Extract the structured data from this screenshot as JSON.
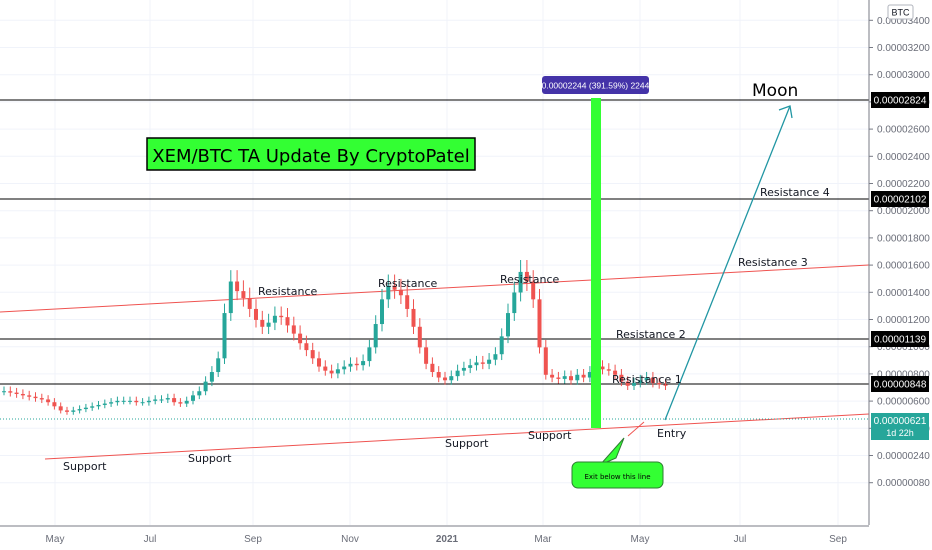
{
  "title_box": {
    "text": "XEM/BTC TA Update By CryptoPatel",
    "bg_color": "#33ff33",
    "border_color": "#000000"
  },
  "currency_badge": "BTC",
  "colors": {
    "up": "#26a69a",
    "down": "#ef5350",
    "channel": "#ef5350",
    "green_bar": "#33ff33",
    "arrow": "#2196a3",
    "level_line": "#000000",
    "measure_badge": "#4433a8",
    "price_badge": "#26a69a",
    "exit_box": "#33ff33"
  },
  "chart_data": {
    "type": "candlestick",
    "pair": "XEM/BTC",
    "price_scale": {
      "ticks": [
        "0.00003400",
        "0.00003200",
        "0.00003000",
        "0.00002800",
        "0.00002600",
        "0.00002400",
        "0.00002200",
        "0.00002000",
        "0.00001800",
        "0.00001600",
        "0.00001400",
        "0.00001200",
        "0.00001000",
        "0.00000800",
        "0.00000600",
        "0.00000400",
        "0.00000240",
        "0.00000080"
      ],
      "range": [
        3e-07,
        3.6e-06
      ]
    },
    "time_axis": {
      "labels": [
        "May",
        "Jul",
        "Sep",
        "Nov",
        "2021",
        "Mar",
        "May",
        "Jul",
        "Sep"
      ],
      "bold_label": "2021"
    },
    "horizontal_levels": [
      {
        "price": 2.824e-05,
        "label": "0.00002824"
      },
      {
        "price": 2.102e-05,
        "label": "0.00002102"
      },
      {
        "price": 1.139e-05,
        "label": "0.00001139"
      },
      {
        "price": 8.48e-06,
        "label": "0.00000848"
      }
    ],
    "current_price": {
      "label": "0.00000621",
      "countdown": "1d 22h"
    },
    "measure": {
      "label": "0.00002244 (391.59%) 2244"
    },
    "annotations": {
      "support": [
        "Support",
        "Support",
        "Support",
        "Support"
      ],
      "resistance": [
        "Resistance",
        "Resistance",
        "Resistance"
      ],
      "resistance_levels": [
        "Resistance 1",
        "Resistance 2",
        "Resistance 3",
        "Resistance 4"
      ],
      "entry": "Entry",
      "moon": "Moon",
      "exit": "Exit below this line"
    },
    "series": [
      {
        "name": "",
        "close": [
          5.8e-06,
          5.7e-06,
          5.6e-06,
          5.5e-06,
          5.4e-06,
          5.3e-06,
          5.2e-06,
          5e-06,
          4.7e-06,
          4.4e-06,
          4.3e-06,
          4.4e-06,
          4.5e-06,
          4.6e-06,
          4.7e-06,
          4.8e-06,
          4.9e-06,
          5e-06,
          5.1e-06,
          5.1e-06,
          5.1e-06,
          5e-06,
          5e-06,
          5.1e-06,
          5.2e-06,
          5.2e-06,
          5.3e-06,
          5e-06,
          4.9e-06,
          5.1e-06,
          5.5e-06,
          5.8e-06,
          6.5e-06,
          7.2e-06,
          8.2e-06,
          1.15e-05,
          1.38e-05,
          1.31e-05,
          1.26e-05,
          1.18e-05,
          1.1e-05,
          1.05e-05,
          1.08e-05,
          1.13e-05,
          1.12e-05,
          1.06e-05,
          1e-05,
          9.3e-06,
          8.8e-06,
          8.2e-06,
          7.6e-06,
          7.3e-06,
          7.1e-06,
          7.4e-06,
          7.6e-06,
          7.8e-06,
          7.7e-06,
          8e-06,
          9e-06,
          1.07e-05,
          1.25e-05,
          1.35e-05,
          1.32e-05,
          1.28e-05,
          1.18e-05,
          1.05e-05,
          9e-06,
          7.8e-06,
          7.2e-06,
          6.8e-06,
          6.6e-06,
          6.9e-06,
          7.3e-06,
          7.5e-06,
          7.7e-06,
          7.9e-06,
          7.8e-06,
          8.1e-06,
          8.5e-06,
          9.8e-06,
          1.15e-05,
          1.3e-05,
          1.45e-05,
          1.38e-05,
          1.25e-05,
          9e-06,
          7e-06,
          6.8e-06,
          6.7e-06,
          6.9e-06,
          6.6e-06,
          7e-06,
          6.8e-06,
          7.2e-06,
          7.6e-06,
          7.4e-06,
          7.3e-06,
          7e-06,
          6.5e-06,
          6.2e-06,
          6.4e-06,
          6.6e-06,
          6.8e-06,
          6.4e-06,
          6.3e-06,
          6.2e-06
        ]
      }
    ]
  }
}
